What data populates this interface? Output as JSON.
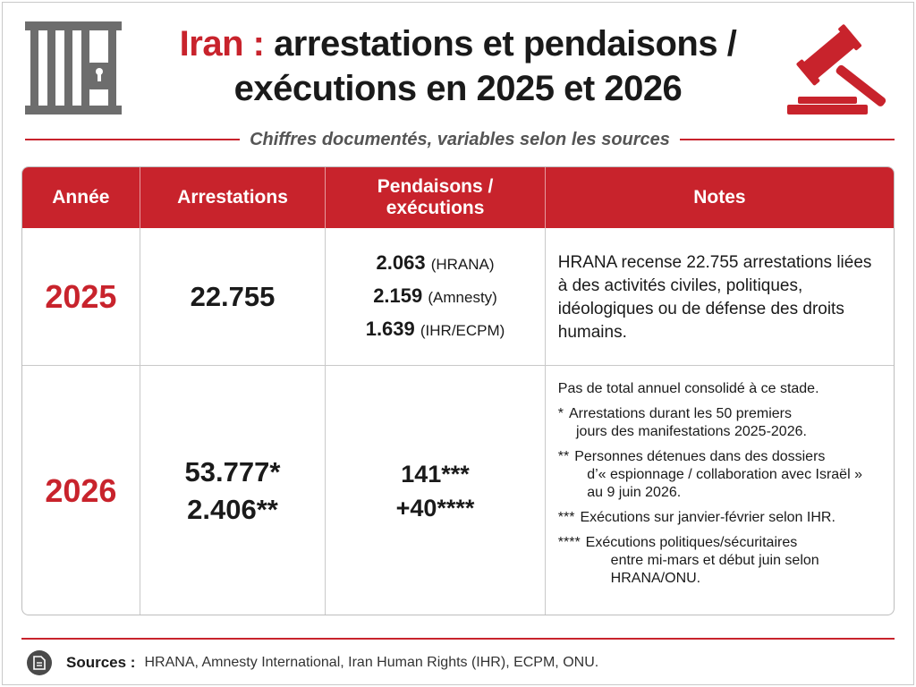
{
  "header": {
    "title_accent": "Iran :",
    "title_rest": "arrestations et pendaisons / exécutions en 2025 et 2026",
    "subtitle": "Chiffres documentés, variables selon les sources"
  },
  "colors": {
    "accent": "#c8232c",
    "text": "#1a1a1a",
    "muted": "#555555"
  },
  "icons": {
    "left": "prison-bars-icon",
    "right": "gavel-icon",
    "sources": "document-icon"
  },
  "table": {
    "headers": [
      "Année",
      "Arrestations",
      "Pendaisons / exécutions",
      "Notes"
    ],
    "rows": [
      {
        "year": "2025",
        "arrestations": [
          "22.755"
        ],
        "pendaisons": [
          {
            "value": "2.063",
            "source": "(HRANA)"
          },
          {
            "value": "2.159",
            "source": "(Amnesty)"
          },
          {
            "value": "1.639",
            "source": "(IHR/ECPM)"
          }
        ],
        "notes": "HRANA recense 22.755 arrestations liées à des activités civiles, politiques, idéologiques ou de défense des droits humains."
      },
      {
        "year": "2026",
        "arrestations": [
          "53.777*",
          "2.406**"
        ],
        "pendaisons_values": [
          "141***",
          "+40****"
        ],
        "notes_lead": "Pas de total annuel consolidé à ce stade.",
        "footnotes": [
          {
            "marker": "*",
            "lines": [
              "Arrestations durant les 50 premiers",
              "jours des manifestations 2025-2026."
            ]
          },
          {
            "marker": "**",
            "lines": [
              "Personnes détenues dans des dossiers",
              "d’« espionnage / collaboration avec Israël »",
              "au 9 juin 2026."
            ]
          },
          {
            "marker": "***",
            "lines": [
              "Exécutions sur janvier-février selon IHR."
            ]
          },
          {
            "marker": "****",
            "lines": [
              "Exécutions politiques/sécuritaires",
              "entre mi-mars et début juin selon",
              "HRANA/ONU."
            ]
          }
        ]
      }
    ]
  },
  "footer": {
    "label": "Sources :",
    "text": "HRANA, Amnesty International,  Iran Human Rights (IHR), ECPM, ONU."
  }
}
